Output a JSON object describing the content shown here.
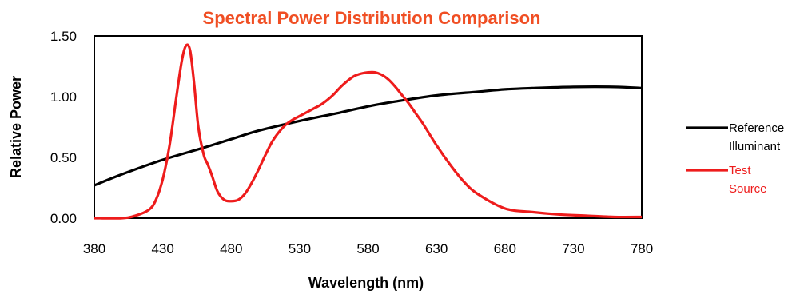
{
  "chart_data": {
    "type": "line",
    "title": "Spectral Power Distribution Comparison",
    "title_color": "#f04e23",
    "xlabel": "Wavelength (nm)",
    "ylabel": "Relative Power",
    "xlim": [
      380,
      780
    ],
    "ylim": [
      0,
      1.5
    ],
    "x_ticks": [
      "380",
      "430",
      "480",
      "530",
      "580",
      "630",
      "680",
      "730",
      "780"
    ],
    "y_ticks": [
      "0.00",
      "0.50",
      "1.00",
      "1.50"
    ],
    "grid": false,
    "legend_position": "right",
    "series": [
      {
        "name": "Reference Illuminant",
        "legend_lines": [
          "Reference",
          "Illuminant"
        ],
        "color": "#000000",
        "x": [
          380,
          400,
          430,
          460,
          480,
          500,
          530,
          560,
          580,
          600,
          630,
          660,
          680,
          700,
          730,
          760,
          780
        ],
        "y": [
          0.27,
          0.36,
          0.48,
          0.58,
          0.65,
          0.72,
          0.8,
          0.87,
          0.92,
          0.96,
          1.01,
          1.04,
          1.06,
          1.07,
          1.08,
          1.08,
          1.07
        ]
      },
      {
        "name": "Test Source",
        "legend_lines": [
          "Test",
          "Source"
        ],
        "color": "#ee1c1c",
        "x": [
          380,
          400,
          410,
          420,
          425,
          430,
          435,
          440,
          444,
          447,
          450,
          453,
          456,
          460,
          463,
          466,
          470,
          475,
          480,
          485,
          490,
          495,
          500,
          505,
          510,
          515,
          520,
          525,
          530,
          535,
          540,
          545,
          550,
          555,
          560,
          565,
          570,
          575,
          580,
          585,
          590,
          595,
          600,
          605,
          610,
          615,
          620,
          630,
          640,
          650,
          660,
          680,
          700,
          720,
          740,
          760,
          780
        ],
        "y": [
          0.0,
          0.0,
          0.02,
          0.07,
          0.15,
          0.32,
          0.6,
          1.0,
          1.3,
          1.42,
          1.38,
          1.1,
          0.75,
          0.52,
          0.44,
          0.35,
          0.22,
          0.15,
          0.14,
          0.15,
          0.2,
          0.29,
          0.4,
          0.52,
          0.63,
          0.71,
          0.77,
          0.81,
          0.84,
          0.87,
          0.9,
          0.93,
          0.97,
          1.02,
          1.08,
          1.13,
          1.17,
          1.19,
          1.2,
          1.2,
          1.18,
          1.14,
          1.08,
          1.01,
          0.94,
          0.86,
          0.78,
          0.6,
          0.44,
          0.3,
          0.2,
          0.08,
          0.05,
          0.03,
          0.02,
          0.01,
          0.01
        ]
      }
    ]
  }
}
